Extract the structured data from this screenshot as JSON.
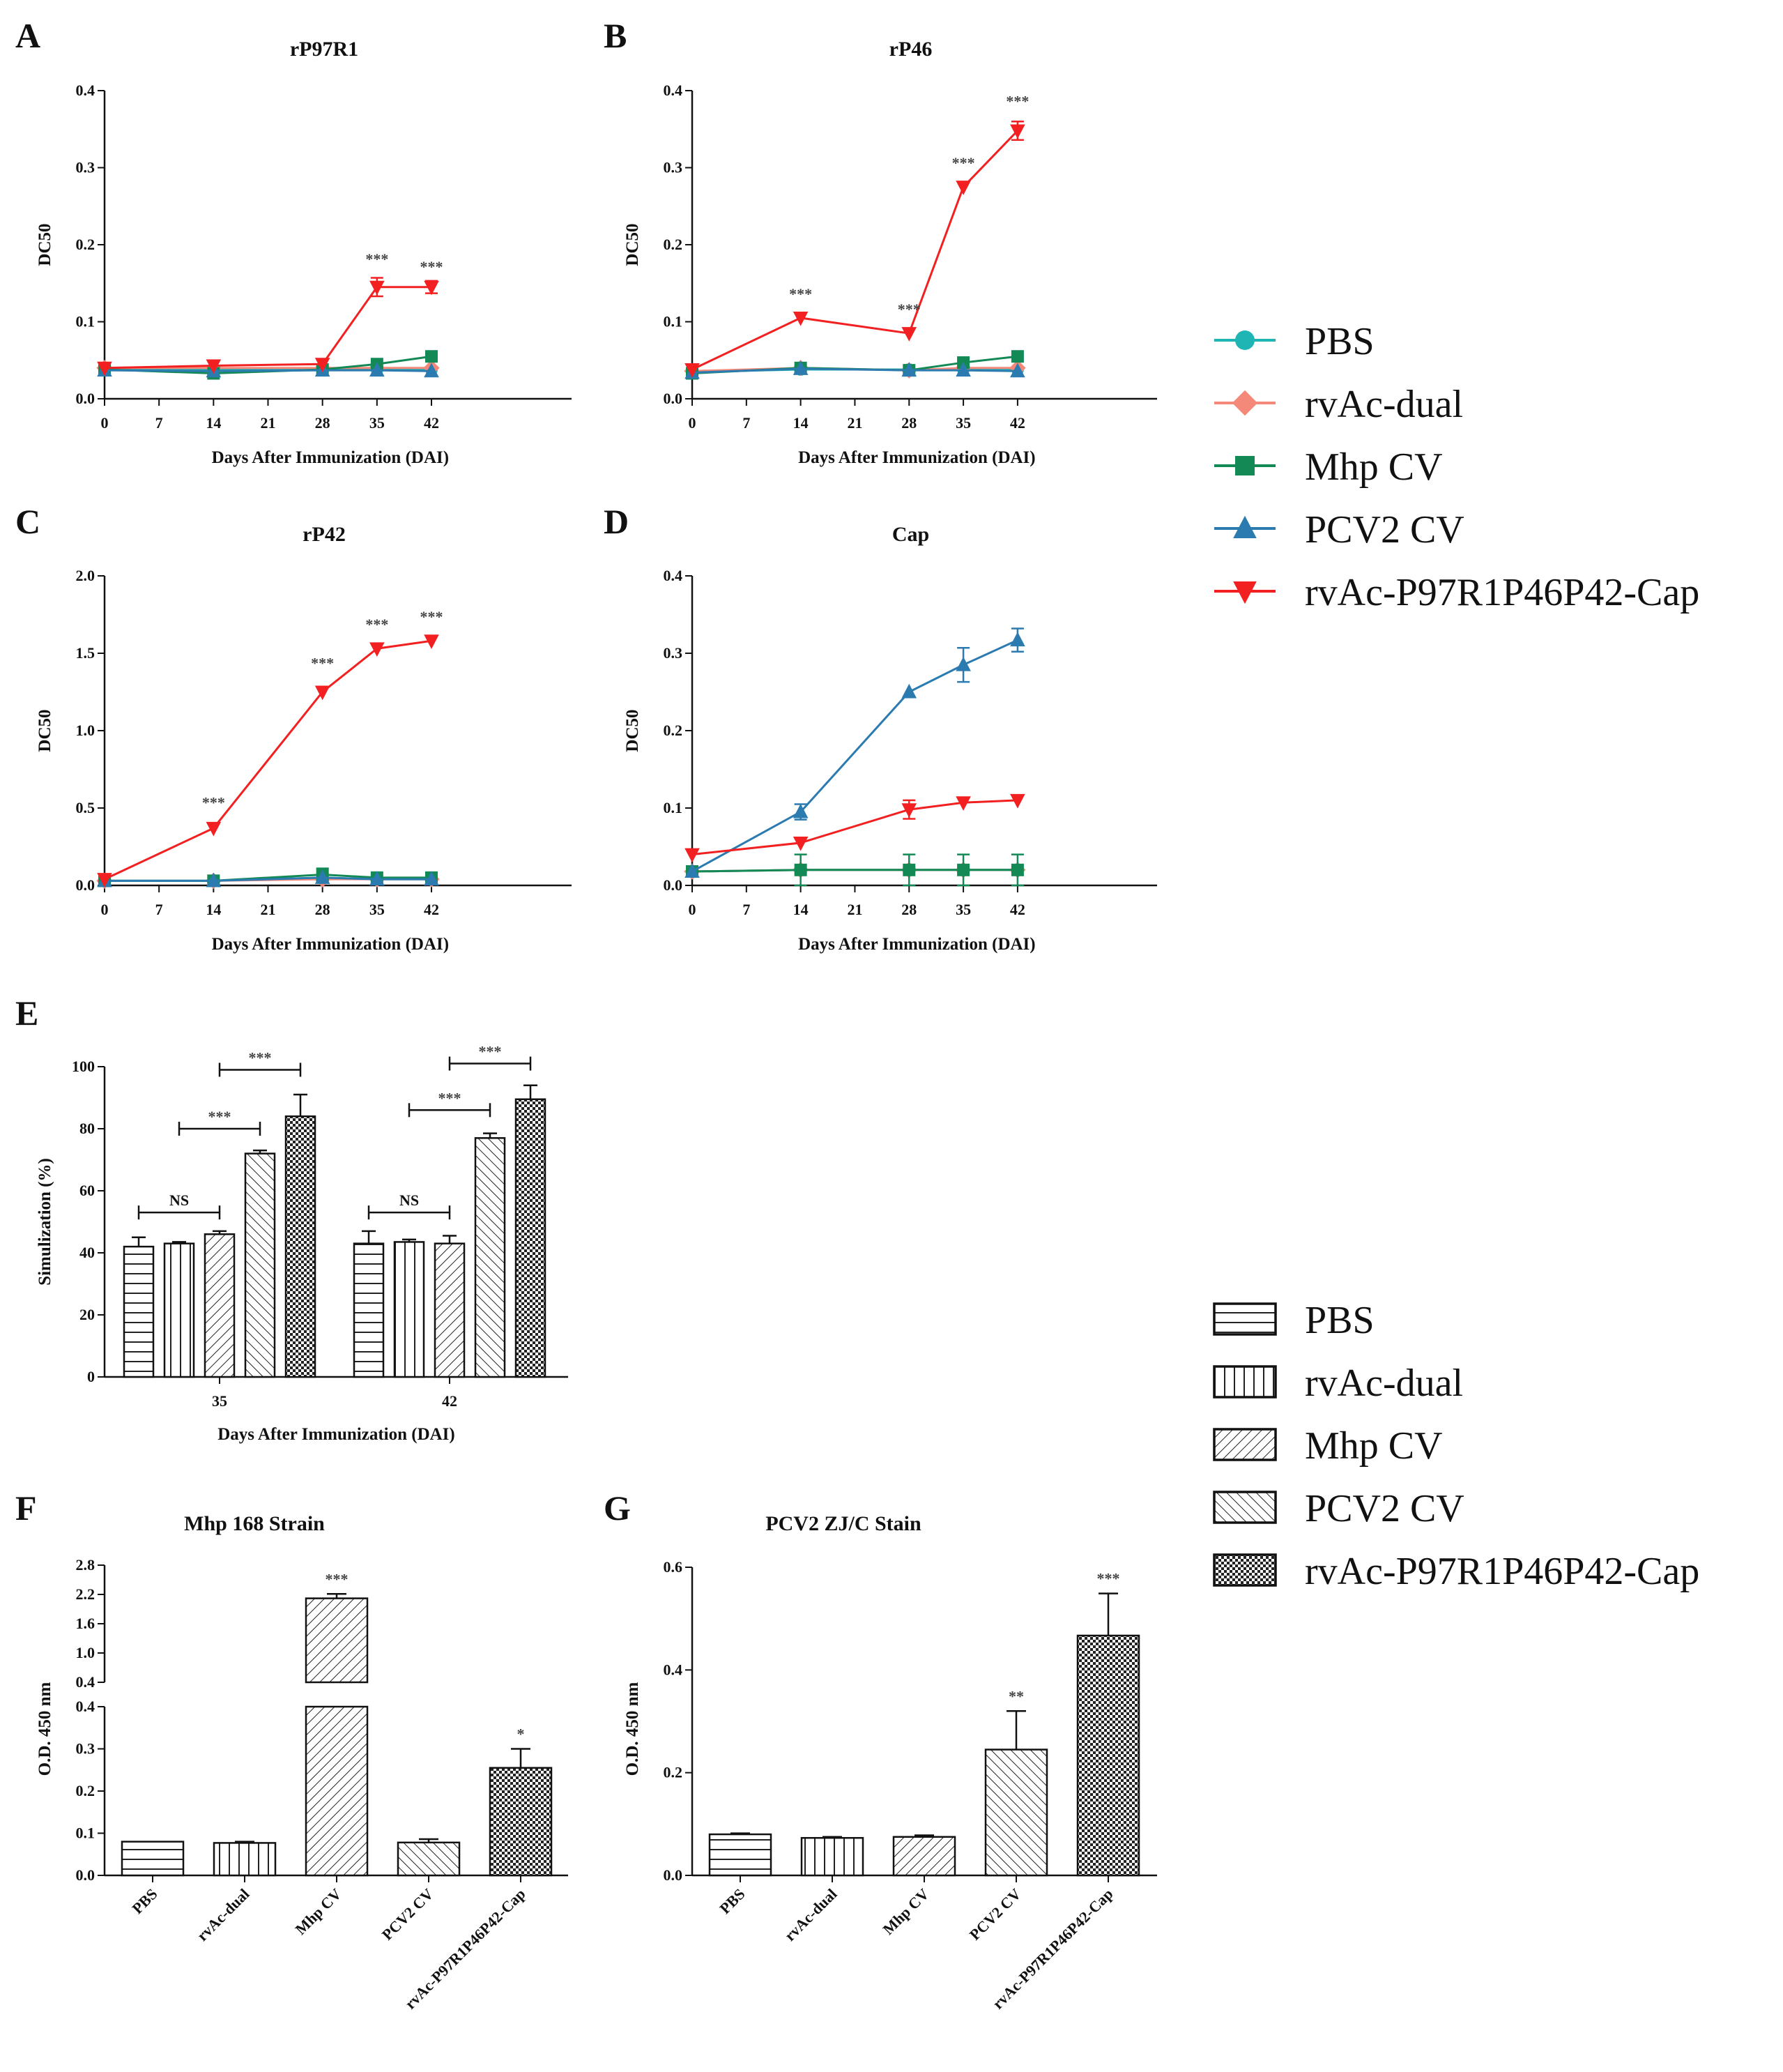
{
  "figure": {
    "legend_line": [
      {
        "name": "PBS",
        "color": "#1fb5b5",
        "marker": "circle"
      },
      {
        "name": "rvAc-dual",
        "color": "#f4897a",
        "marker": "diamond"
      },
      {
        "name": "Mhp CV",
        "color": "#138a55",
        "marker": "square"
      },
      {
        "name": "PCV2 CV",
        "color": "#2b7bb0",
        "marker": "triangle-up"
      },
      {
        "name": "rvAc-P97R1P46P42-Cap",
        "color": "#f22020",
        "marker": "triangle-down"
      }
    ],
    "legend_bar": [
      {
        "name": "PBS",
        "pattern": "hlines"
      },
      {
        "name": "rvAc-dual",
        "pattern": "vlines"
      },
      {
        "name": "Mhp CV",
        "pattern": "diag-right"
      },
      {
        "name": "PCV2 CV",
        "pattern": "diag-left"
      },
      {
        "name": "rvAc-P97R1P46P42-Cap",
        "pattern": "checker"
      }
    ]
  },
  "chart_data": [
    {
      "panel": "A",
      "type": "line",
      "title": "rP97R1",
      "xlabel": "Days After Immunization (DAI)",
      "ylabel": "DC50",
      "x": [
        0,
        7,
        14,
        21,
        28,
        35,
        42
      ],
      "xticks": [
        "0",
        "7",
        "14",
        "21",
        "28",
        "35",
        "42"
      ],
      "ylim": [
        0,
        0.4
      ],
      "yticks": [
        "0.0",
        "0.1",
        "0.2",
        "0.3",
        "0.4"
      ],
      "ytick_values": [
        0,
        0.1,
        0.2,
        0.3,
        0.4
      ],
      "series": [
        {
          "name": "PBS",
          "x": [
            0,
            14,
            28,
            35,
            42
          ],
          "values": [
            0.038,
            0.038,
            0.038,
            0.038,
            0.038
          ]
        },
        {
          "name": "rvAc-dual",
          "x": [
            0,
            14,
            28,
            35,
            42
          ],
          "values": [
            0.04,
            0.04,
            0.04,
            0.04,
            0.04
          ]
        },
        {
          "name": "Mhp CV",
          "x": [
            0,
            14,
            28,
            35,
            42
          ],
          "values": [
            0.038,
            0.033,
            0.038,
            0.045,
            0.055
          ]
        },
        {
          "name": "PCV2 CV",
          "x": [
            0,
            14,
            28,
            35,
            42
          ],
          "values": [
            0.037,
            0.036,
            0.037,
            0.037,
            0.036
          ]
        },
        {
          "name": "rvAc-P97R1P46P42-Cap",
          "x": [
            0,
            14,
            28,
            35,
            42
          ],
          "values": [
            0.04,
            0.043,
            0.045,
            0.145,
            0.145
          ],
          "err": [
            0,
            0,
            0,
            0.012,
            0.008
          ]
        }
      ],
      "annotations": [
        {
          "x": 35,
          "text": "***",
          "y": 0.18
        },
        {
          "x": 42,
          "text": "***",
          "y": 0.17
        }
      ]
    },
    {
      "panel": "B",
      "type": "line",
      "title": "rP46",
      "xlabel": "Days After Immunization (DAI)",
      "ylabel": "DC50",
      "x": [
        0,
        7,
        14,
        21,
        28,
        35,
        42
      ],
      "xticks": [
        "0",
        "7",
        "14",
        "21",
        "28",
        "35",
        "42"
      ],
      "ylim": [
        0,
        0.4
      ],
      "yticks": [
        "0.0",
        "0.1",
        "0.2",
        "0.3",
        "0.4"
      ],
      "ytick_values": [
        0,
        0.1,
        0.2,
        0.3,
        0.4
      ],
      "series": [
        {
          "name": "PBS",
          "x": [
            0,
            14,
            28,
            35,
            42
          ],
          "values": [
            0.035,
            0.038,
            0.038,
            0.038,
            0.038
          ]
        },
        {
          "name": "rvAc-dual",
          "x": [
            0,
            14,
            28,
            35,
            42
          ],
          "values": [
            0.036,
            0.04,
            0.037,
            0.04,
            0.04
          ]
        },
        {
          "name": "Mhp CV",
          "x": [
            0,
            14,
            28,
            35,
            42
          ],
          "values": [
            0.033,
            0.04,
            0.037,
            0.047,
            0.055
          ]
        },
        {
          "name": "PCV2 CV",
          "x": [
            0,
            14,
            28,
            35,
            42
          ],
          "values": [
            0.034,
            0.039,
            0.037,
            0.037,
            0.036
          ]
        },
        {
          "name": "rvAc-P97R1P46P42-Cap",
          "x": [
            0,
            14,
            28,
            35,
            42
          ],
          "values": [
            0.038,
            0.105,
            0.085,
            0.275,
            0.348
          ],
          "err": [
            0,
            0,
            0,
            0,
            0.012
          ]
        }
      ],
      "annotations": [
        {
          "x": 14,
          "text": "***",
          "y": 0.135
        },
        {
          "x": 28,
          "text": "***",
          "y": 0.115
        },
        {
          "x": 35,
          "text": "***",
          "y": 0.305
        },
        {
          "x": 42,
          "text": "***",
          "y": 0.385
        }
      ]
    },
    {
      "panel": "C",
      "type": "line",
      "title": "rP42",
      "xlabel": "Days After Immunization (DAI)",
      "ylabel": "DC50",
      "x": [
        0,
        7,
        14,
        21,
        28,
        35,
        42
      ],
      "xticks": [
        "0",
        "7",
        "14",
        "21",
        "28",
        "35",
        "42"
      ],
      "ylim": [
        0,
        2.0
      ],
      "yticks": [
        "0.0",
        "0.5",
        "1.0",
        "1.5",
        "2.0"
      ],
      "ytick_values": [
        0,
        0.5,
        1,
        1.5,
        2
      ],
      "series": [
        {
          "name": "PBS",
          "x": [
            0,
            14,
            28,
            35,
            42
          ],
          "values": [
            0.03,
            0.03,
            0.05,
            0.04,
            0.04
          ]
        },
        {
          "name": "rvAc-dual",
          "x": [
            0,
            14,
            28,
            35,
            42
          ],
          "values": [
            0.03,
            0.03,
            0.04,
            0.04,
            0.04
          ]
        },
        {
          "name": "Mhp CV",
          "x": [
            0,
            14,
            28,
            35,
            42
          ],
          "values": [
            0.03,
            0.03,
            0.07,
            0.05,
            0.05
          ],
          "err": [
            0,
            0,
            0.04,
            0,
            0.02
          ]
        },
        {
          "name": "PCV2 CV",
          "x": [
            0,
            14,
            28,
            35,
            42
          ],
          "values": [
            0.03,
            0.03,
            0.05,
            0.04,
            0.04
          ]
        },
        {
          "name": "rvAc-P97R1P46P42-Cap",
          "x": [
            0,
            14,
            28,
            35,
            42
          ],
          "values": [
            0.04,
            0.37,
            1.25,
            1.53,
            1.58
          ]
        }
      ],
      "annotations": [
        {
          "x": 14,
          "text": "***",
          "y": 0.53
        },
        {
          "x": 28,
          "text": "***",
          "y": 1.43
        },
        {
          "x": 35,
          "text": "***",
          "y": 1.68
        },
        {
          "x": 42,
          "text": "***",
          "y": 1.73
        }
      ]
    },
    {
      "panel": "D",
      "type": "line",
      "title": "Cap",
      "xlabel": "Days After Immunization (DAI)",
      "ylabel": "DC50",
      "x": [
        0,
        7,
        14,
        21,
        28,
        35,
        42
      ],
      "xticks": [
        "0",
        "7",
        "14",
        "21",
        "28",
        "35",
        "42"
      ],
      "ylim": [
        0,
        0.4
      ],
      "yticks": [
        "0.0",
        "0.1",
        "0.2",
        "0.3",
        "0.4"
      ],
      "ytick_values": [
        0,
        0.1,
        0.2,
        0.3,
        0.4
      ],
      "series": [
        {
          "name": "PBS",
          "x": [
            0,
            14,
            28,
            35,
            42
          ],
          "values": [
            0.018,
            0.02,
            0.02,
            0.02,
            0.02
          ]
        },
        {
          "name": "rvAc-dual",
          "x": [
            0,
            14,
            28,
            35,
            42
          ],
          "values": [
            0.018,
            0.02,
            0.02,
            0.02,
            0.02
          ]
        },
        {
          "name": "Mhp CV",
          "x": [
            0,
            14,
            28,
            35,
            42
          ],
          "values": [
            0.018,
            0.02,
            0.02,
            0.02,
            0.02
          ],
          "err": [
            0,
            0.02,
            0.02,
            0.02,
            0.02
          ]
        },
        {
          "name": "PCV2 CV",
          "x": [
            0,
            14,
            28,
            35,
            42
          ],
          "values": [
            0.018,
            0.095,
            0.25,
            0.285,
            0.317
          ],
          "err": [
            0,
            0.01,
            0,
            0.022,
            0.015
          ]
        },
        {
          "name": "rvAc-P97R1P46P42-Cap",
          "x": [
            0,
            14,
            28,
            35,
            42
          ],
          "values": [
            0.04,
            0.055,
            0.098,
            0.107,
            0.11
          ],
          "err": [
            0,
            0,
            0.012,
            0,
            0
          ]
        }
      ],
      "annotations": []
    },
    {
      "panel": "E",
      "type": "bar",
      "title": "",
      "xlabel": "Days After Immunization (DAI)",
      "ylabel": "Simulization (%)",
      "categories": [
        "35",
        "42"
      ],
      "ylim": [
        0,
        100
      ],
      "yticks": [
        "0",
        "20",
        "40",
        "60",
        "80",
        "100"
      ],
      "ytick_values": [
        0,
        20,
        40,
        60,
        80,
        100
      ],
      "series": [
        {
          "name": "PBS",
          "values": [
            42,
            43
          ],
          "err": [
            3,
            4
          ]
        },
        {
          "name": "rvAc-dual",
          "values": [
            43,
            43.5
          ],
          "err": [
            0.5,
            0.8
          ]
        },
        {
          "name": "Mhp CV",
          "values": [
            46,
            43
          ],
          "err": [
            1,
            2.5
          ]
        },
        {
          "name": "PCV2 CV",
          "values": [
            72,
            77
          ],
          "err": [
            1,
            1.5
          ]
        },
        {
          "name": "rvAc-P97R1P46P42-Cap",
          "values": [
            84,
            89.5
          ],
          "err": [
            7,
            4.5
          ]
        }
      ],
      "brackets": [
        {
          "category": 0,
          "from": 0,
          "to": 2,
          "y": 53,
          "text": "NS"
        },
        {
          "category": 0,
          "from": 1,
          "to": 3,
          "y": 80,
          "text": "***"
        },
        {
          "category": 0,
          "from": 2,
          "to": 4,
          "y": 99,
          "text": "***"
        },
        {
          "category": 1,
          "from": 0,
          "to": 2,
          "y": 53,
          "text": "NS"
        },
        {
          "category": 1,
          "from": 1,
          "to": 3,
          "y": 86,
          "text": "***"
        },
        {
          "category": 1,
          "from": 2,
          "to": 4,
          "y": 101,
          "text": "***"
        }
      ]
    },
    {
      "panel": "F",
      "type": "bar",
      "title": "Mhp 168 Strain",
      "xlabel": "",
      "ylabel": "O.D. 450 nm",
      "categories": [
        "PBS",
        "rvAc-dual",
        "Mhp CV",
        "PCV2 CV",
        "rvAc-P97R1P46P42-Cap"
      ],
      "values": [
        0.08,
        0.077,
        2.12,
        0.078,
        0.255
      ],
      "err": [
        0,
        0.003,
        0.09,
        0.008,
        0.045
      ],
      "ylim": [
        0,
        2.8
      ],
      "axis_break": [
        0.4,
        0.4
      ],
      "yticks_lower": [
        "0.0",
        "0.1",
        "0.2",
        "0.3",
        "0.4"
      ],
      "ytick_values_lower": [
        0,
        0.1,
        0.2,
        0.3,
        0.4
      ],
      "yticks_upper": [
        "0.4",
        "1.0",
        "1.6",
        "2.2",
        "2.8"
      ],
      "ytick_values_upper": [
        0.4,
        1.0,
        1.6,
        2.2,
        2.8
      ],
      "annotations": [
        {
          "index": 2,
          "text": "***"
        },
        {
          "index": 4,
          "text": "*"
        }
      ]
    },
    {
      "panel": "G",
      "type": "bar",
      "title": "PCV2 ZJ/C Stain",
      "xlabel": "",
      "ylabel": "O.D. 450 nm",
      "categories": [
        "PBS",
        "rvAc-dual",
        "Mhp CV",
        "PCV2 CV",
        "rvAc-P97R1P46P42-Cap"
      ],
      "values": [
        0.08,
        0.073,
        0.075,
        0.245,
        0.467
      ],
      "err": [
        0.002,
        0.002,
        0.003,
        0.075,
        0.082
      ],
      "ylim": [
        0,
        0.6
      ],
      "yticks": [
        "0.0",
        "0.2",
        "0.4",
        "0.6"
      ],
      "ytick_values": [
        0,
        0.2,
        0.4,
        0.6
      ],
      "annotations": [
        {
          "index": 3,
          "text": "**"
        },
        {
          "index": 4,
          "text": "***"
        }
      ]
    }
  ]
}
